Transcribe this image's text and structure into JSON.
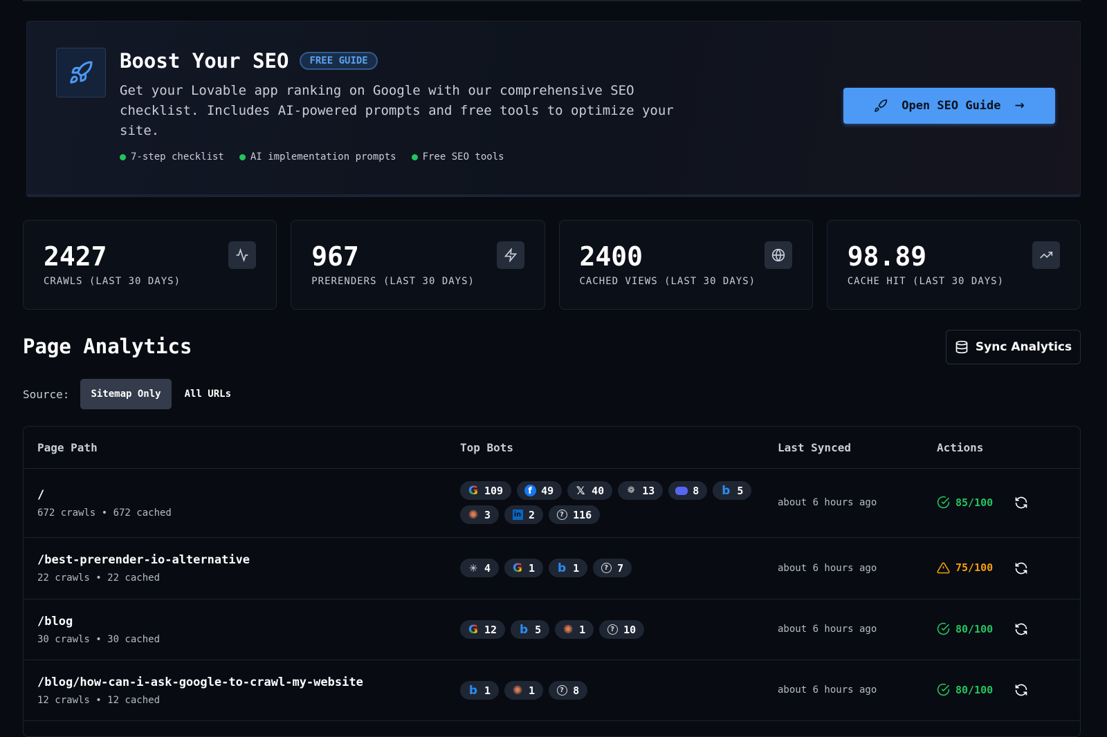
{
  "hero": {
    "title": "Boost Your SEO",
    "badge": "FREE GUIDE",
    "description": "Get your Lovable app ranking on Google with our comprehensive SEO checklist. Includes AI-powered prompts and free tools to optimize your site.",
    "features": [
      "7-step checklist",
      "AI implementation prompts",
      "Free SEO tools"
    ],
    "cta": "Open SEO Guide"
  },
  "stats": [
    {
      "value": "2427",
      "label": "CRAWLS (LAST 30 DAYS)",
      "icon": "activity-icon"
    },
    {
      "value": "967",
      "label": "PRERENDERS (LAST 30 DAYS)",
      "icon": "zap-icon"
    },
    {
      "value": "2400",
      "label": "CACHED VIEWS (LAST 30 DAYS)",
      "icon": "globe-icon"
    },
    {
      "value": "98.89",
      "label": "CACHE HIT (LAST 30 DAYS)",
      "icon": "trending-up-icon"
    }
  ],
  "analytics": {
    "title": "Page Analytics",
    "sync": "Sync Analytics",
    "source_label": "Source:",
    "sources": [
      "Sitemap Only",
      "All URLs"
    ],
    "active_source": "Sitemap Only"
  },
  "table": {
    "headers": [
      "Page Path",
      "Top Bots",
      "Last Synced",
      "Actions"
    ],
    "rows": [
      {
        "path": "/",
        "sub": "672 crawls • 672 cached",
        "bots": [
          [
            "google",
            109
          ],
          [
            "facebook",
            49
          ],
          [
            "x",
            40
          ],
          [
            "openai",
            13
          ],
          [
            "discord",
            8
          ],
          [
            "bing",
            5
          ],
          [
            "claude",
            3
          ],
          [
            "linkedin",
            2
          ],
          [
            "unknown",
            116
          ]
        ],
        "synced": "about 6 hours ago",
        "score": "85/100",
        "status": "good"
      },
      {
        "path": "/best-prerender-io-alternative",
        "sub": "22 crawls • 22 cached",
        "bots": [
          [
            "perplexity",
            4
          ],
          [
            "google",
            1
          ],
          [
            "bing",
            1
          ],
          [
            "unknown",
            7
          ]
        ],
        "synced": "about 6 hours ago",
        "score": "75/100",
        "status": "warn"
      },
      {
        "path": "/blog",
        "sub": "30 crawls • 30 cached",
        "bots": [
          [
            "google",
            12
          ],
          [
            "bing",
            5
          ],
          [
            "claude",
            1
          ],
          [
            "unknown",
            10
          ]
        ],
        "synced": "about 6 hours ago",
        "score": "80/100",
        "status": "good"
      },
      {
        "path": "/blog/how-can-i-ask-google-to-crawl-my-website",
        "sub": "12 crawls • 12 cached",
        "bots": [
          [
            "bing",
            1
          ],
          [
            "claude",
            1
          ],
          [
            "unknown",
            8
          ]
        ],
        "synced": "about 6 hours ago",
        "score": "80/100",
        "status": "good"
      }
    ]
  },
  "colors": {
    "accent": "#4c9af5",
    "good": "#22c55e",
    "warn": "#f59e0b"
  }
}
